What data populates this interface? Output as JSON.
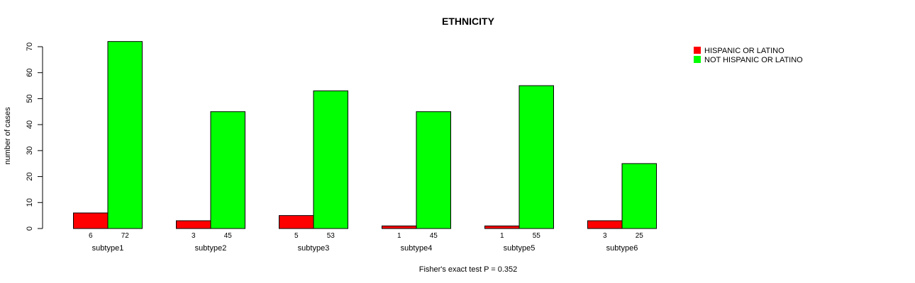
{
  "chart_data": {
    "type": "bar",
    "title": "ETHNICITY",
    "xlabel": "Fisher's exact test P = 0.352",
    "ylabel": "number of cases",
    "ylim": [
      0,
      70
    ],
    "yticks": [
      0,
      10,
      20,
      30,
      40,
      50,
      60,
      70
    ],
    "grid": false,
    "legend_position": "top-right",
    "categories": [
      "subtype1",
      "subtype2",
      "subtype3",
      "subtype4",
      "subtype5",
      "subtype6"
    ],
    "series": [
      {
        "name": "HISPANIC OR LATINO",
        "color": "#ff0000",
        "values": [
          6,
          3,
          5,
          1,
          1,
          3
        ]
      },
      {
        "name": "NOT HISPANIC OR LATINO",
        "color": "#00ff00",
        "values": [
          72,
          45,
          53,
          45,
          55,
          25
        ]
      }
    ]
  }
}
